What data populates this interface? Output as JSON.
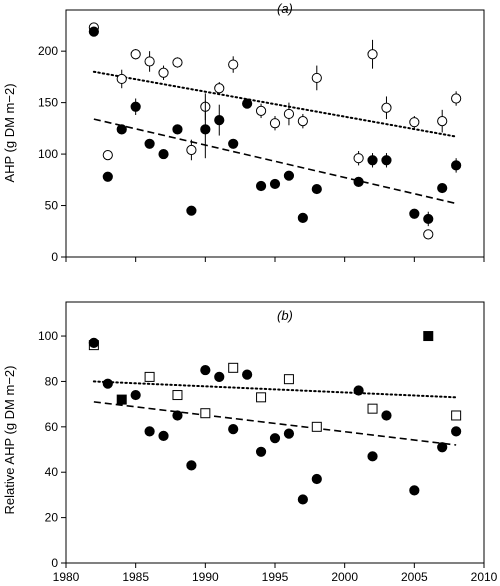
{
  "chart_data": [
    {
      "type": "scatter",
      "panel_label": "(a)",
      "ylabel": "AHP (g DM m−2)",
      "xlim": [
        1980,
        2010
      ],
      "ylim": [
        0,
        240
      ],
      "yticks": [
        0,
        50,
        100,
        150,
        200
      ],
      "xticks": [
        1980,
        1985,
        1990,
        1995,
        2000,
        2005,
        2010
      ],
      "show_xtick_labels": false,
      "series": [
        {
          "marker": "open-circle",
          "points": [
            {
              "x": 1982,
              "y": 223,
              "err": 0
            },
            {
              "x": 1983,
              "y": 99,
              "err": 0
            },
            {
              "x": 1984,
              "y": 173,
              "err": 9
            },
            {
              "x": 1985,
              "y": 197,
              "err": 5
            },
            {
              "x": 1986,
              "y": 190,
              "err": 10
            },
            {
              "x": 1987,
              "y": 179,
              "err": 7
            },
            {
              "x": 1988,
              "y": 189,
              "err": 5
            },
            {
              "x": 1989,
              "y": 104,
              "err": 10
            },
            {
              "x": 1990,
              "y": 146,
              "err": 13
            },
            {
              "x": 1991,
              "y": 164,
              "err": 6
            },
            {
              "x": 1992,
              "y": 187,
              "err": 8
            },
            {
              "x": 1994,
              "y": 142,
              "err": 7
            },
            {
              "x": 1995,
              "y": 130,
              "err": 7
            },
            {
              "x": 1996,
              "y": 139,
              "err": 11
            },
            {
              "x": 1997,
              "y": 132,
              "err": 7
            },
            {
              "x": 1998,
              "y": 174,
              "err": 12
            },
            {
              "x": 2001,
              "y": 96,
              "err": 7
            },
            {
              "x": 2002,
              "y": 197,
              "err": 14
            },
            {
              "x": 2003,
              "y": 145,
              "err": 11
            },
            {
              "x": 2005,
              "y": 131,
              "err": 6
            },
            {
              "x": 2006,
              "y": 22,
              "err": 4
            },
            {
              "x": 2007,
              "y": 132,
              "err": 11
            },
            {
              "x": 2008,
              "y": 154,
              "err": 7
            }
          ],
          "trend": {
            "style": "dotted",
            "x": [
              1982,
              2008
            ],
            "y": [
              180,
              117
            ]
          }
        },
        {
          "marker": "filled-circle",
          "points": [
            {
              "x": 1982,
              "y": 219,
              "err": 0
            },
            {
              "x": 1983,
              "y": 78,
              "err": 0
            },
            {
              "x": 1984,
              "y": 124,
              "err": 0
            },
            {
              "x": 1985,
              "y": 146,
              "err": 8
            },
            {
              "x": 1986,
              "y": 110,
              "err": 0
            },
            {
              "x": 1987,
              "y": 100,
              "err": 0
            },
            {
              "x": 1988,
              "y": 124,
              "err": 0
            },
            {
              "x": 1989,
              "y": 45,
              "err": 0
            },
            {
              "x": 1990,
              "y": 124,
              "err": 28
            },
            {
              "x": 1991,
              "y": 133,
              "err": 15
            },
            {
              "x": 1992,
              "y": 110,
              "err": 0
            },
            {
              "x": 1993,
              "y": 149,
              "err": 0
            },
            {
              "x": 1994,
              "y": 69,
              "err": 0
            },
            {
              "x": 1995,
              "y": 71,
              "err": 0
            },
            {
              "x": 1996,
              "y": 79,
              "err": 0
            },
            {
              "x": 1997,
              "y": 38,
              "err": 0
            },
            {
              "x": 1998,
              "y": 66,
              "err": 0
            },
            {
              "x": 2001,
              "y": 73,
              "err": 0
            },
            {
              "x": 2002,
              "y": 94,
              "err": 7
            },
            {
              "x": 2003,
              "y": 94,
              "err": 7
            },
            {
              "x": 2005,
              "y": 42,
              "err": 0
            },
            {
              "x": 2006,
              "y": 37,
              "err": 7
            },
            {
              "x": 2007,
              "y": 67,
              "err": 0
            },
            {
              "x": 2008,
              "y": 89,
              "err": 7
            }
          ],
          "trend": {
            "style": "dashed",
            "x": [
              1982,
              2008
            ],
            "y": [
              134,
              52
            ]
          }
        }
      ]
    },
    {
      "type": "scatter",
      "panel_label": "(b)",
      "ylabel": "Relative AHP (g DM m−2)",
      "xlim": [
        1980,
        2010
      ],
      "ylim": [
        0,
        115
      ],
      "yticks": [
        0,
        20,
        40,
        60,
        80,
        100
      ],
      "xticks": [
        1980,
        1985,
        1990,
        1995,
        2000,
        2005,
        2010
      ],
      "xtick_labels": [
        "1980",
        "1985",
        "1990",
        "1995",
        "2000",
        "2005",
        "2010"
      ],
      "show_xtick_labels": true,
      "series": [
        {
          "marker": "open-square",
          "points": [
            {
              "x": 1982,
              "y": 96
            },
            {
              "x": 1986,
              "y": 82
            },
            {
              "x": 1988,
              "y": 74
            },
            {
              "x": 1990,
              "y": 66
            },
            {
              "x": 1992,
              "y": 86
            },
            {
              "x": 1994,
              "y": 73
            },
            {
              "x": 1996,
              "y": 81
            },
            {
              "x": 1998,
              "y": 60
            },
            {
              "x": 2002,
              "y": 68
            },
            {
              "x": 2008,
              "y": 65
            }
          ],
          "trend": {
            "style": "dotted",
            "x": [
              1982,
              2008
            ],
            "y": [
              80,
              73
            ]
          }
        },
        {
          "marker": "filled-square",
          "points": [
            {
              "x": 1984,
              "y": 72
            },
            {
              "x": 2006,
              "y": 100
            }
          ]
        },
        {
          "marker": "filled-circle",
          "points": [
            {
              "x": 1982,
              "y": 97
            },
            {
              "x": 1983,
              "y": 79
            },
            {
              "x": 1985,
              "y": 74
            },
            {
              "x": 1986,
              "y": 58
            },
            {
              "x": 1987,
              "y": 56
            },
            {
              "x": 1988,
              "y": 65
            },
            {
              "x": 1989,
              "y": 43
            },
            {
              "x": 1990,
              "y": 85
            },
            {
              "x": 1991,
              "y": 82
            },
            {
              "x": 1992,
              "y": 59
            },
            {
              "x": 1993,
              "y": 83
            },
            {
              "x": 1994,
              "y": 49
            },
            {
              "x": 1995,
              "y": 55
            },
            {
              "x": 1996,
              "y": 57
            },
            {
              "x": 1997,
              "y": 28
            },
            {
              "x": 1998,
              "y": 37
            },
            {
              "x": 2001,
              "y": 76
            },
            {
              "x": 2002,
              "y": 47
            },
            {
              "x": 2003,
              "y": 65
            },
            {
              "x": 2005,
              "y": 32
            },
            {
              "x": 2007,
              "y": 51
            },
            {
              "x": 2008,
              "y": 58
            }
          ],
          "trend": {
            "style": "dashed",
            "x": [
              1982,
              2008
            ],
            "y": [
              71,
              52
            ]
          }
        }
      ]
    }
  ]
}
